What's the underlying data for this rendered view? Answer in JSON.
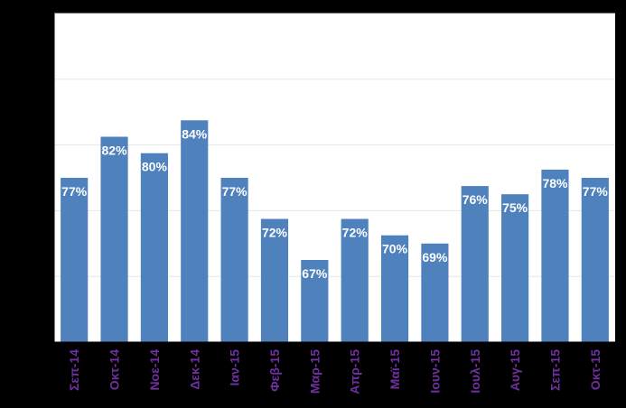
{
  "chart_data": {
    "type": "bar",
    "categories": [
      "Σεπ-14",
      "Οκτ-14",
      "Νοε-14",
      "Δεκ-14",
      "Ιαν-15",
      "Φεβ-15",
      "Μαρ-15",
      "Απρ-15",
      "Μαϊ-15",
      "Ιουν-15",
      "Ιουλ-15",
      "Αυγ-15",
      "Σεπ-15",
      "Οκτ-15"
    ],
    "values": [
      77,
      82,
      80,
      84,
      77,
      72,
      67,
      72,
      70,
      69,
      76,
      75,
      78,
      77
    ],
    "data_labels": [
      "77%",
      "82%",
      "80%",
      "84%",
      "77%",
      "72%",
      "67%",
      "72%",
      "70%",
      "69%",
      "76%",
      "75%",
      "78%",
      "77%"
    ],
    "title": "",
    "xlabel": "",
    "ylabel": "",
    "ylim": [
      57,
      97
    ],
    "grid": true,
    "legend": "none",
    "colors": {
      "bar": "#4F81BD",
      "data_label": "#FFFFFF",
      "category_label": "#7030A0",
      "plot_background": "#FFFFFF",
      "page_background": "#000000"
    }
  }
}
